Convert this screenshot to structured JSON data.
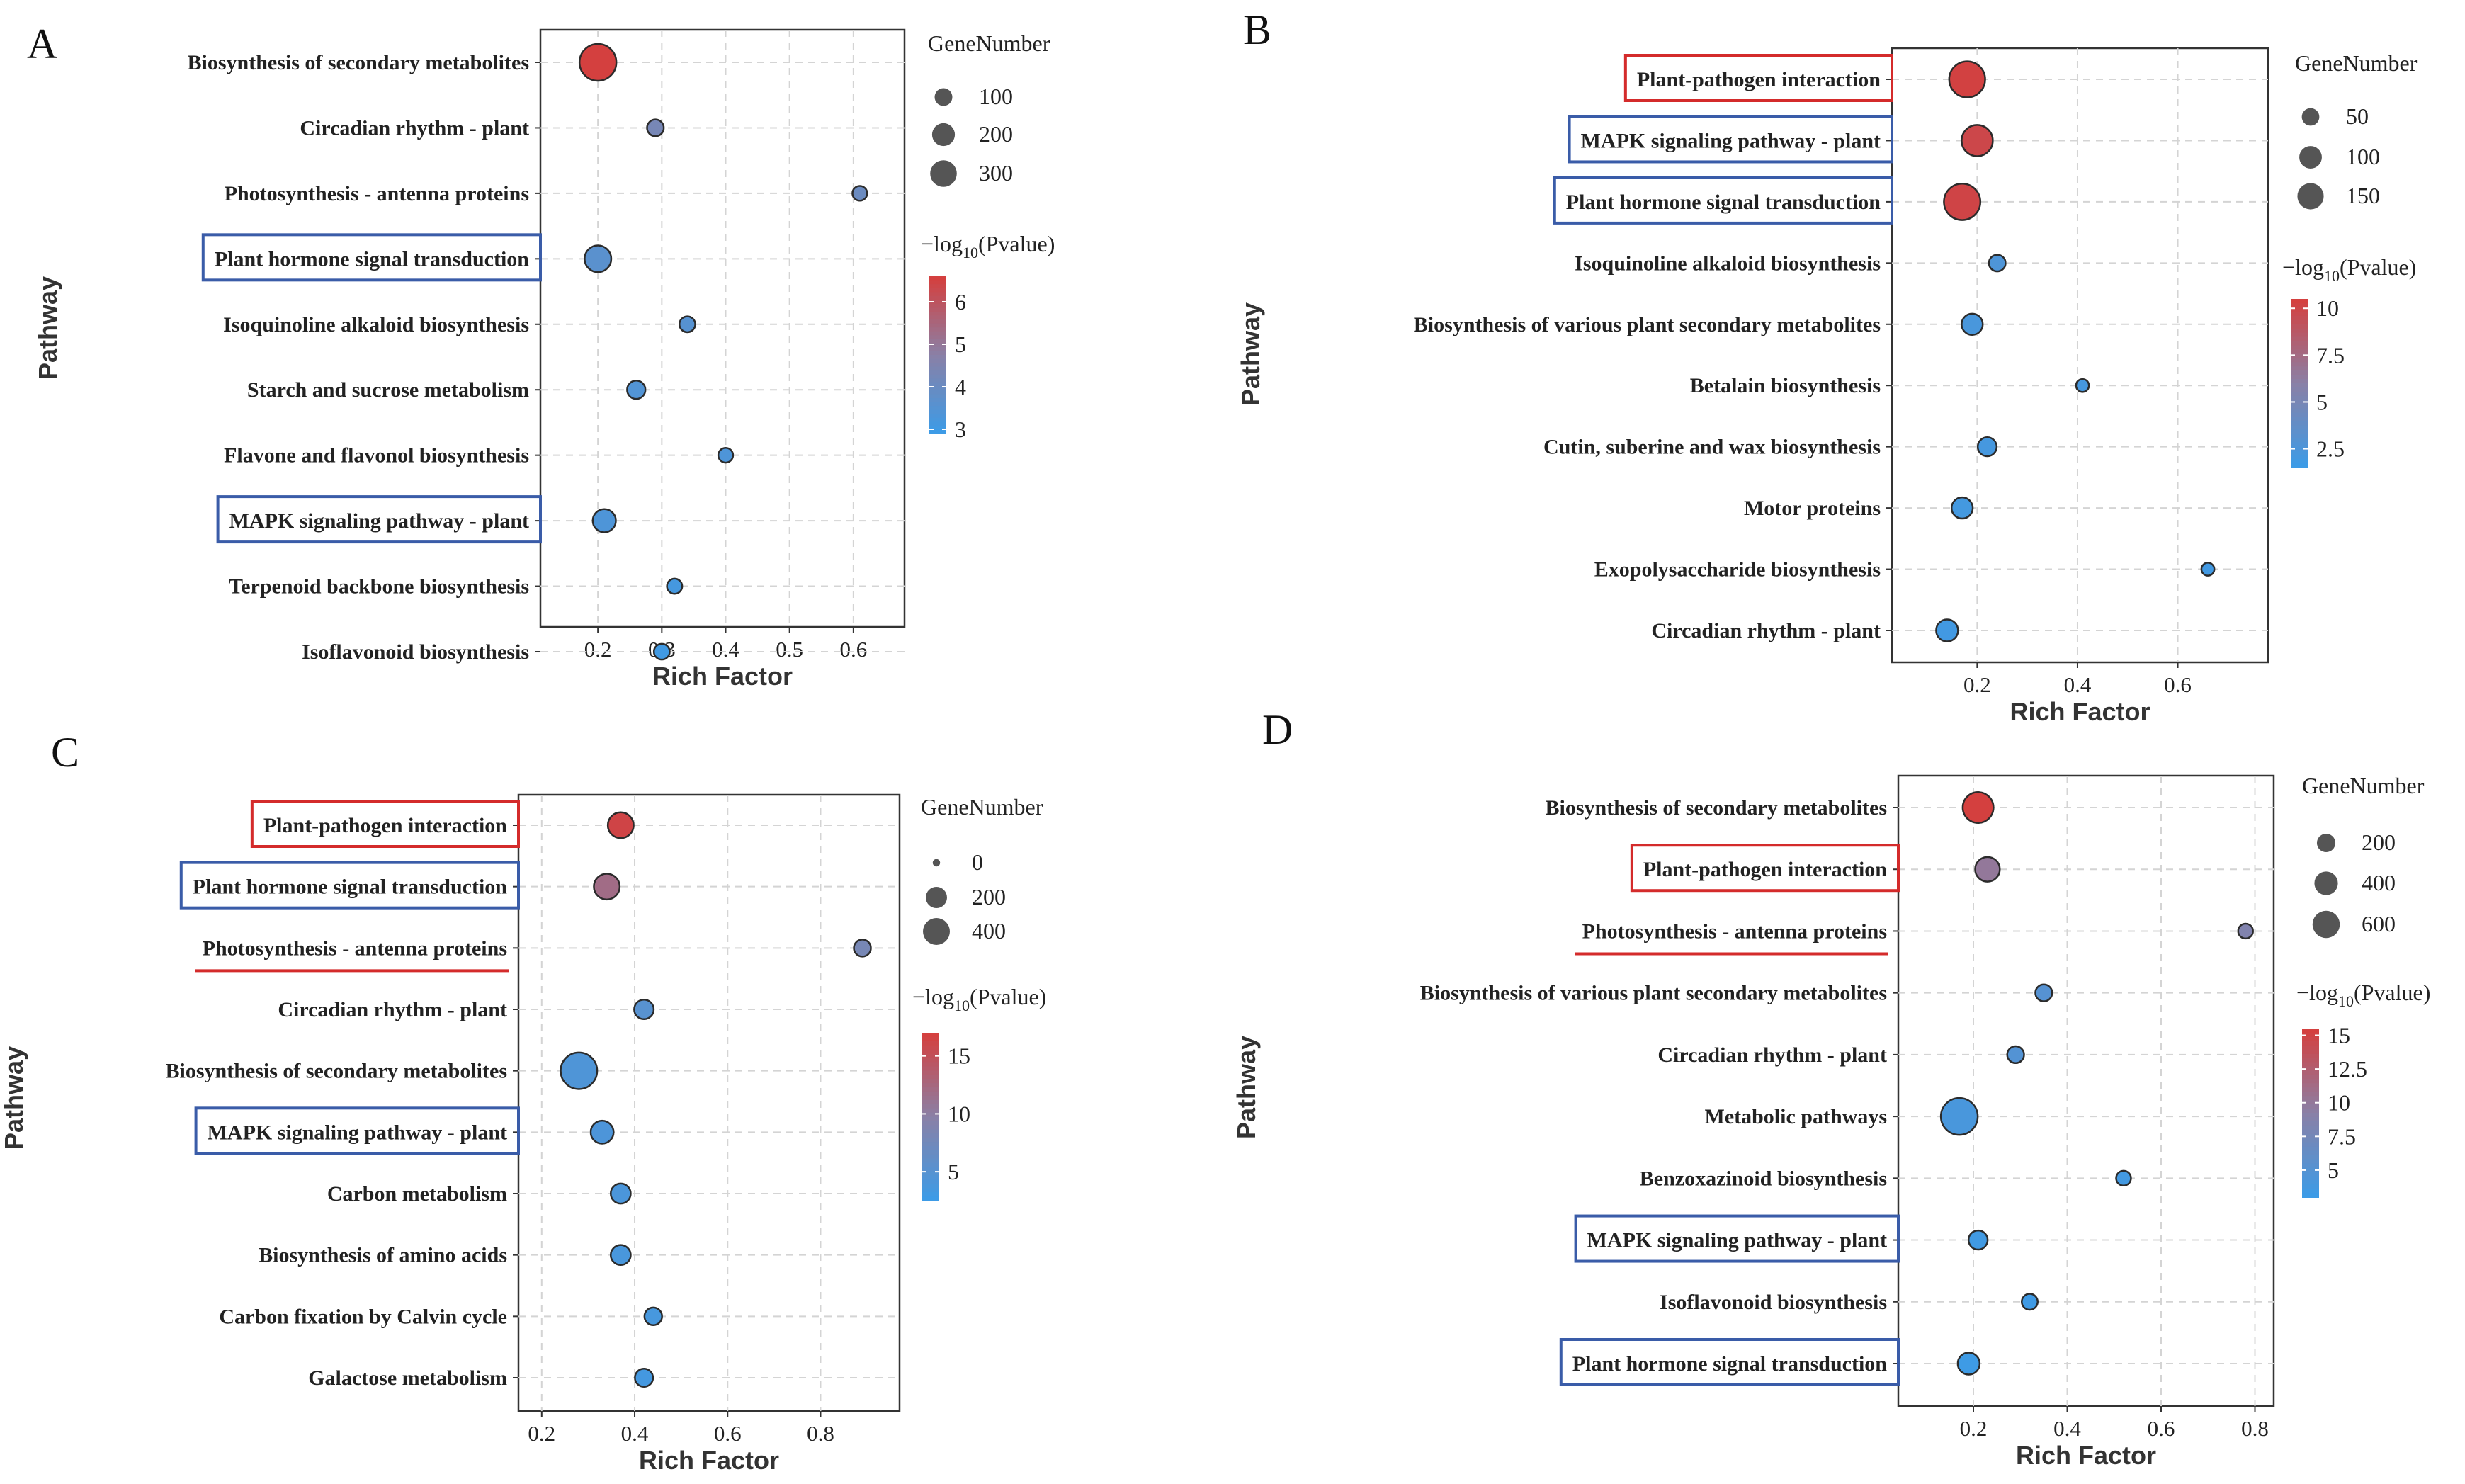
{
  "chart_data": [
    {
      "panel": "A",
      "type": "scatter",
      "xlabel": "Rich Factor",
      "ylabel": "Pathway",
      "xlim": [
        0.11,
        0.68
      ],
      "xticks": [
        0.2,
        0.3,
        0.4,
        0.5,
        0.6
      ],
      "xtick_labels": [
        "0.2",
        "0.3",
        "0.4",
        "0.5",
        "0.6"
      ],
      "size_legend_title": "GeneNumber",
      "size_legend": [
        {
          "label": "100",
          "value": 100
        },
        {
          "label": "200",
          "value": 200
        },
        {
          "label": "300",
          "value": 300
        }
      ],
      "size_range": [
        20,
        330
      ],
      "color_legend_title": "−log10(Pvalue)",
      "color_legend_ticks": [
        {
          "label": "6",
          "value": 6
        },
        {
          "label": "5",
          "value": 5
        },
        {
          "label": "4",
          "value": 4
        },
        {
          "label": "3",
          "value": 3
        }
      ],
      "color_range": [
        2.9,
        6.6
      ],
      "points": [
        {
          "pathway": "Biosynthesis of secondary metabolites",
          "x": 0.2,
          "gene_number": 330,
          "neglog10p": 6.6,
          "highlight": "none"
        },
        {
          "pathway": "Circadian rhythm - plant",
          "x": 0.29,
          "gene_number": 40,
          "neglog10p": 4.3,
          "highlight": "none"
        },
        {
          "pathway": "Photosynthesis - antenna proteins",
          "x": 0.61,
          "gene_number": 30,
          "neglog10p": 4.0,
          "highlight": "none"
        },
        {
          "pathway": "Plant hormone signal transduction",
          "x": 0.2,
          "gene_number": 140,
          "neglog10p": 3.6,
          "highlight": "box-blue"
        },
        {
          "pathway": "Isoquinoline alkaloid biosynthesis",
          "x": 0.34,
          "gene_number": 35,
          "neglog10p": 3.5,
          "highlight": "none"
        },
        {
          "pathway": "Starch and sucrose metabolism",
          "x": 0.26,
          "gene_number": 50,
          "neglog10p": 3.4,
          "highlight": "none"
        },
        {
          "pathway": "Flavone and flavonol biosynthesis",
          "x": 0.4,
          "gene_number": 30,
          "neglog10p": 3.3,
          "highlight": "none"
        },
        {
          "pathway": "MAPK signaling pathway - plant",
          "x": 0.21,
          "gene_number": 95,
          "neglog10p": 3.3,
          "highlight": "box-blue"
        },
        {
          "pathway": "Terpenoid backbone biosynthesis",
          "x": 0.32,
          "gene_number": 32,
          "neglog10p": 3.1,
          "highlight": "none"
        },
        {
          "pathway": "Isoflavonoid biosynthesis",
          "x": 0.3,
          "gene_number": 35,
          "neglog10p": 3.0,
          "highlight": "none"
        }
      ]
    },
    {
      "panel": "B",
      "type": "scatter",
      "xlabel": "Rich Factor",
      "ylabel": "Pathway",
      "xlim": [
        0.03,
        0.78
      ],
      "xticks": [
        0.2,
        0.4,
        0.6
      ],
      "xtick_labels": [
        "0.2",
        "0.4",
        "0.6"
      ],
      "size_legend_title": "GeneNumber",
      "size_legend": [
        {
          "label": "50",
          "value": 50
        },
        {
          "label": "100",
          "value": 100
        },
        {
          "label": "150",
          "value": 150
        }
      ],
      "size_range": [
        10,
        170
      ],
      "color_legend_title": "−log10(Pvalue)",
      "color_legend_ticks": [
        {
          "label": "10",
          "value": 10
        },
        {
          "label": "7.5",
          "value": 7.5
        },
        {
          "label": "5",
          "value": 5
        },
        {
          "label": "2.5",
          "value": 2.5
        }
      ],
      "color_range": [
        1.5,
        10.5
      ],
      "points": [
        {
          "pathway": "Plant-pathogen interaction",
          "x": 0.18,
          "gene_number": 160,
          "neglog10p": 10.4,
          "highlight": "box-red"
        },
        {
          "pathway": "MAPK signaling pathway - plant",
          "x": 0.2,
          "gene_number": 110,
          "neglog10p": 10.0,
          "highlight": "box-blue"
        },
        {
          "pathway": "Plant hormone signal transduction",
          "x": 0.17,
          "gene_number": 165,
          "neglog10p": 10.2,
          "highlight": "box-blue"
        },
        {
          "pathway": "Isoquinoline alkaloid biosynthesis",
          "x": 0.24,
          "gene_number": 20,
          "neglog10p": 2.5,
          "highlight": "none"
        },
        {
          "pathway": "Biosynthesis of various plant secondary metabolites",
          "x": 0.19,
          "gene_number": 38,
          "neglog10p": 2.2,
          "highlight": "none"
        },
        {
          "pathway": "Betalain biosynthesis",
          "x": 0.41,
          "gene_number": 12,
          "neglog10p": 2.0,
          "highlight": "none"
        },
        {
          "pathway": "Cutin, suberine and wax biosynthesis",
          "x": 0.22,
          "gene_number": 28,
          "neglog10p": 2.0,
          "highlight": "none"
        },
        {
          "pathway": "Motor proteins",
          "x": 0.17,
          "gene_number": 38,
          "neglog10p": 1.9,
          "highlight": "none"
        },
        {
          "pathway": "Exopolysaccharide biosynthesis",
          "x": 0.66,
          "gene_number": 12,
          "neglog10p": 1.8,
          "highlight": "none"
        },
        {
          "pathway": "Circadian rhythm - plant",
          "x": 0.14,
          "gene_number": 42,
          "neglog10p": 1.8,
          "highlight": "none"
        }
      ]
    },
    {
      "panel": "C",
      "type": "scatter",
      "xlabel": "Rich Factor",
      "ylabel": "Pathway",
      "xlim": [
        0.15,
        0.97
      ],
      "xticks": [
        0.2,
        0.4,
        0.6,
        0.8
      ],
      "xtick_labels": [
        "0.2",
        "0.4",
        "0.6",
        "0.8"
      ],
      "size_legend_title": "GeneNumber",
      "size_legend": [
        {
          "label": "0",
          "value": 0
        },
        {
          "label": "200",
          "value": 200
        },
        {
          "label": "400",
          "value": 400
        }
      ],
      "size_range": [
        0,
        430
      ],
      "color_legend_title": "−log10(Pvalue)",
      "color_legend_ticks": [
        {
          "label": "15",
          "value": 15
        },
        {
          "label": "10",
          "value": 10
        },
        {
          "label": "5",
          "value": 5
        }
      ],
      "color_range": [
        2.5,
        17
      ],
      "points": [
        {
          "pathway": "Plant-pathogen interaction",
          "x": 0.37,
          "gene_number": 150,
          "neglog10p": 16.5,
          "highlight": "box-red"
        },
        {
          "pathway": "Plant hormone signal transduction",
          "x": 0.34,
          "gene_number": 150,
          "neglog10p": 12.0,
          "highlight": "box-blue"
        },
        {
          "pathway": "Photosynthesis - antenna proteins",
          "x": 0.89,
          "gene_number": 30,
          "neglog10p": 8.0,
          "highlight": "underline-red"
        },
        {
          "pathway": "Circadian rhythm - plant",
          "x": 0.42,
          "gene_number": 55,
          "neglog10p": 5.0,
          "highlight": "none"
        },
        {
          "pathway": "Biosynthesis of secondary metabolites",
          "x": 0.28,
          "gene_number": 420,
          "neglog10p": 4.2,
          "highlight": "none"
        },
        {
          "pathway": "MAPK signaling pathway - plant",
          "x": 0.33,
          "gene_number": 100,
          "neglog10p": 4.0,
          "highlight": "box-blue"
        },
        {
          "pathway": "Carbon metabolism",
          "x": 0.37,
          "gene_number": 60,
          "neglog10p": 3.8,
          "highlight": "none"
        },
        {
          "pathway": "Biosynthesis of amino acids",
          "x": 0.37,
          "gene_number": 60,
          "neglog10p": 3.6,
          "highlight": "none"
        },
        {
          "pathway": "Carbon fixation by Calvin cycle",
          "x": 0.44,
          "gene_number": 35,
          "neglog10p": 3.4,
          "highlight": "none"
        },
        {
          "pathway": "Galactose metabolism",
          "x": 0.42,
          "gene_number": 40,
          "neglog10p": 3.2,
          "highlight": "none"
        }
      ]
    },
    {
      "panel": "D",
      "type": "scatter",
      "xlabel": "Rich Factor",
      "ylabel": "Pathway",
      "xlim": [
        0.04,
        0.84
      ],
      "xticks": [
        0.2,
        0.4,
        0.6,
        0.8
      ],
      "xtick_labels": [
        "0.2",
        "0.4",
        "0.6",
        "0.8"
      ],
      "size_legend_title": "GeneNumber",
      "size_legend": [
        {
          "label": "200",
          "value": 200
        },
        {
          "label": "400",
          "value": 400
        },
        {
          "label": "600",
          "value": 600
        }
      ],
      "size_range": [
        20,
        620
      ],
      "color_legend_title": "−log10(Pvalue)",
      "color_legend_ticks": [
        {
          "label": "15",
          "value": 15
        },
        {
          "label": "12.5",
          "value": 12.5
        },
        {
          "label": "10",
          "value": 10
        },
        {
          "label": "7.5",
          "value": 7.5
        },
        {
          "label": "5",
          "value": 5
        }
      ],
      "color_range": [
        3,
        15.5
      ],
      "points": [
        {
          "pathway": "Biosynthesis of secondary metabolites",
          "x": 0.21,
          "gene_number": 380,
          "neglog10p": 15.5,
          "highlight": "none"
        },
        {
          "pathway": "Plant-pathogen interaction",
          "x": 0.23,
          "gene_number": 200,
          "neglog10p": 10.0,
          "highlight": "box-red"
        },
        {
          "pathway": "Photosynthesis - antenna proteins",
          "x": 0.78,
          "gene_number": 40,
          "neglog10p": 8.5,
          "highlight": "underline-red"
        },
        {
          "pathway": "Biosynthesis of various plant secondary metabolites",
          "x": 0.35,
          "gene_number": 60,
          "neglog10p": 5.0,
          "highlight": "none"
        },
        {
          "pathway": "Circadian rhythm - plant",
          "x": 0.29,
          "gene_number": 60,
          "neglog10p": 4.8,
          "highlight": "none"
        },
        {
          "pathway": "Metabolic pathways",
          "x": 0.17,
          "gene_number": 620,
          "neglog10p": 4.0,
          "highlight": "none"
        },
        {
          "pathway": "Benzoxazinoid biosynthesis",
          "x": 0.52,
          "gene_number": 40,
          "neglog10p": 3.5,
          "highlight": "none"
        },
        {
          "pathway": "MAPK signaling pathway - plant",
          "x": 0.21,
          "gene_number": 90,
          "neglog10p": 3.3,
          "highlight": "box-blue"
        },
        {
          "pathway": "Isoflavonoid biosynthesis",
          "x": 0.32,
          "gene_number": 50,
          "neglog10p": 3.2,
          "highlight": "none"
        },
        {
          "pathway": "Plant hormone signal transduction",
          "x": 0.19,
          "gene_number": 140,
          "neglog10p": 3.1,
          "highlight": "box-blue"
        }
      ]
    }
  ],
  "colors": {
    "low": "#3d9be6",
    "mid": "#8a80a6",
    "high": "#d4403f",
    "box_blue": "#3a5ca8",
    "box_red": "#d42b2b",
    "grid": "#d4d4d4",
    "frame": "#333333"
  }
}
